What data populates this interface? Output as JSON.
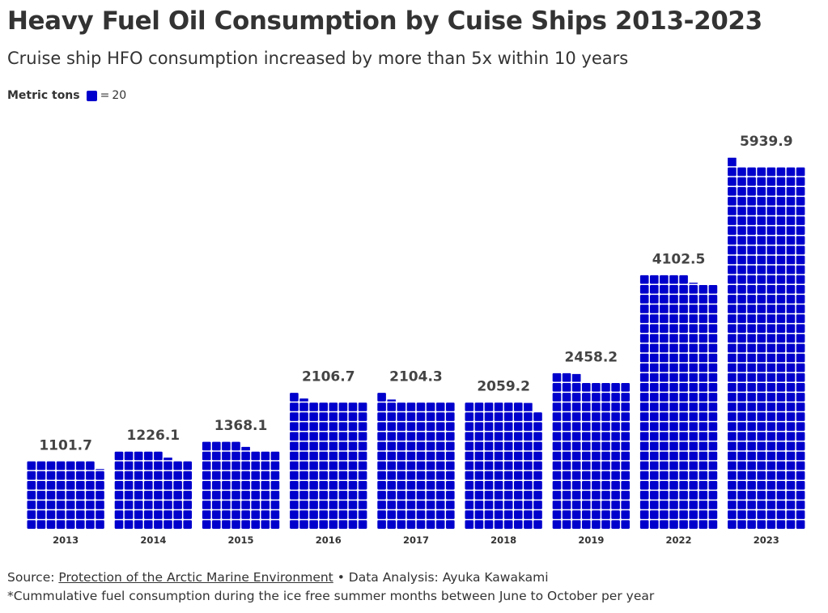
{
  "title": "Heavy Fuel Oil Consumption by Cuise Ships 2013-2023",
  "subtitle": "Cruise ship HFO consumption increased by more than 5x within 10 years",
  "legend": {
    "title": "Metric tons",
    "equals": "=",
    "unit_value": "20"
  },
  "chart_data": {
    "type": "bar",
    "subtype": "waffle",
    "unit_per_square": 20,
    "columns_per_bar": 8,
    "categories": [
      "2013",
      "2014",
      "2015",
      "2016",
      "2017",
      "2018",
      "2019",
      "2022",
      "2023"
    ],
    "values": [
      1101.7,
      1226.1,
      1368.1,
      2106.7,
      2104.3,
      2059.2,
      2458.2,
      4102.5,
      5939.9
    ],
    "value_labels": [
      "1101.7",
      "1226.1",
      "1368.1",
      "2106.7",
      "2104.3",
      "2059.2",
      "2458.2",
      "4102.5",
      "5939.9"
    ],
    "square_color": "#0000cc",
    "xlabel": "",
    "ylabel": ""
  },
  "footer": {
    "source_prefix": "Source: ",
    "source_link": "Protection of the Arctic Marine Environment",
    "source_suffix": " • Data Analysis: Ayuka Kawakami",
    "note": "*Cummulative fuel consumption during the ice free summer months between June to October per year"
  }
}
